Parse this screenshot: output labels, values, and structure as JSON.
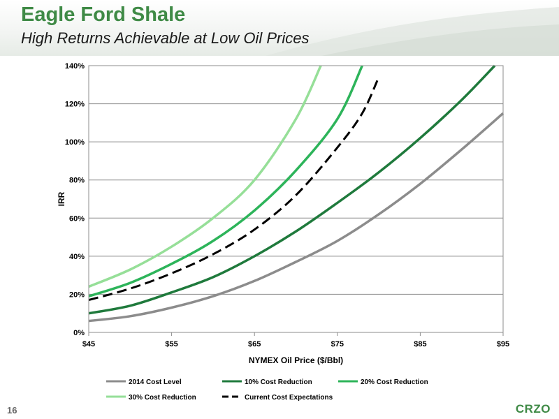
{
  "slide": {
    "title": "Eagle Ford Shale",
    "subtitle": "High Returns Achievable at Low Oil Prices",
    "page_number": "16",
    "logo_text": "CRZO"
  },
  "chart_data": {
    "type": "line",
    "title": "",
    "xlabel": "NYMEX Oil Price ($/Bbl)",
    "ylabel": "IRR",
    "xlim": [
      45,
      95
    ],
    "ylim": [
      0,
      140
    ],
    "x_ticks": [
      45,
      55,
      65,
      75,
      85,
      95
    ],
    "x_tick_labels": [
      "$45",
      "$55",
      "$65",
      "$75",
      "$85",
      "$95"
    ],
    "y_ticks": [
      0,
      20,
      40,
      60,
      80,
      100,
      120,
      140
    ],
    "y_tick_labels": [
      "0%",
      "20%",
      "40%",
      "60%",
      "80%",
      "100%",
      "120%",
      "140%"
    ],
    "grid": true,
    "legend_position": "bottom",
    "series": [
      {
        "name": "2014 Cost Level",
        "color": "#8c8c8c",
        "style": "solid",
        "x": [
          45,
          50,
          55,
          60,
          65,
          70,
          75,
          80,
          85,
          90,
          95
        ],
        "y": [
          6,
          8.5,
          13,
          19,
          27,
          37,
          48,
          62,
          78,
          96,
          115
        ]
      },
      {
        "name": "10% Cost Reduction",
        "color": "#1f7a3c",
        "style": "solid",
        "x": [
          45,
          50,
          55,
          60,
          65,
          70,
          75,
          80,
          85,
          90,
          94
        ],
        "y": [
          10,
          14,
          21,
          29,
          40,
          53,
          68,
          84,
          102,
          122,
          140
        ]
      },
      {
        "name": "20% Cost Reduction",
        "color": "#2db45a",
        "style": "solid",
        "x": [
          45,
          50,
          55,
          60,
          65,
          70,
          75,
          78
        ],
        "y": [
          19,
          26,
          36,
          48,
          64,
          85,
          112,
          140
        ]
      },
      {
        "name": "30% Cost Reduction",
        "color": "#96df98",
        "style": "solid",
        "x": [
          45,
          50,
          55,
          60,
          65,
          70,
          73
        ],
        "y": [
          24,
          33,
          45,
          60,
          80,
          112,
          140
        ]
      },
      {
        "name": "Current Cost Expectations",
        "color": "#000000",
        "style": "dashed",
        "x": [
          45,
          50,
          55,
          60,
          65,
          70,
          75,
          78,
          80
        ],
        "y": [
          17,
          23,
          31,
          41,
          54,
          72,
          97,
          115,
          134
        ]
      }
    ]
  }
}
